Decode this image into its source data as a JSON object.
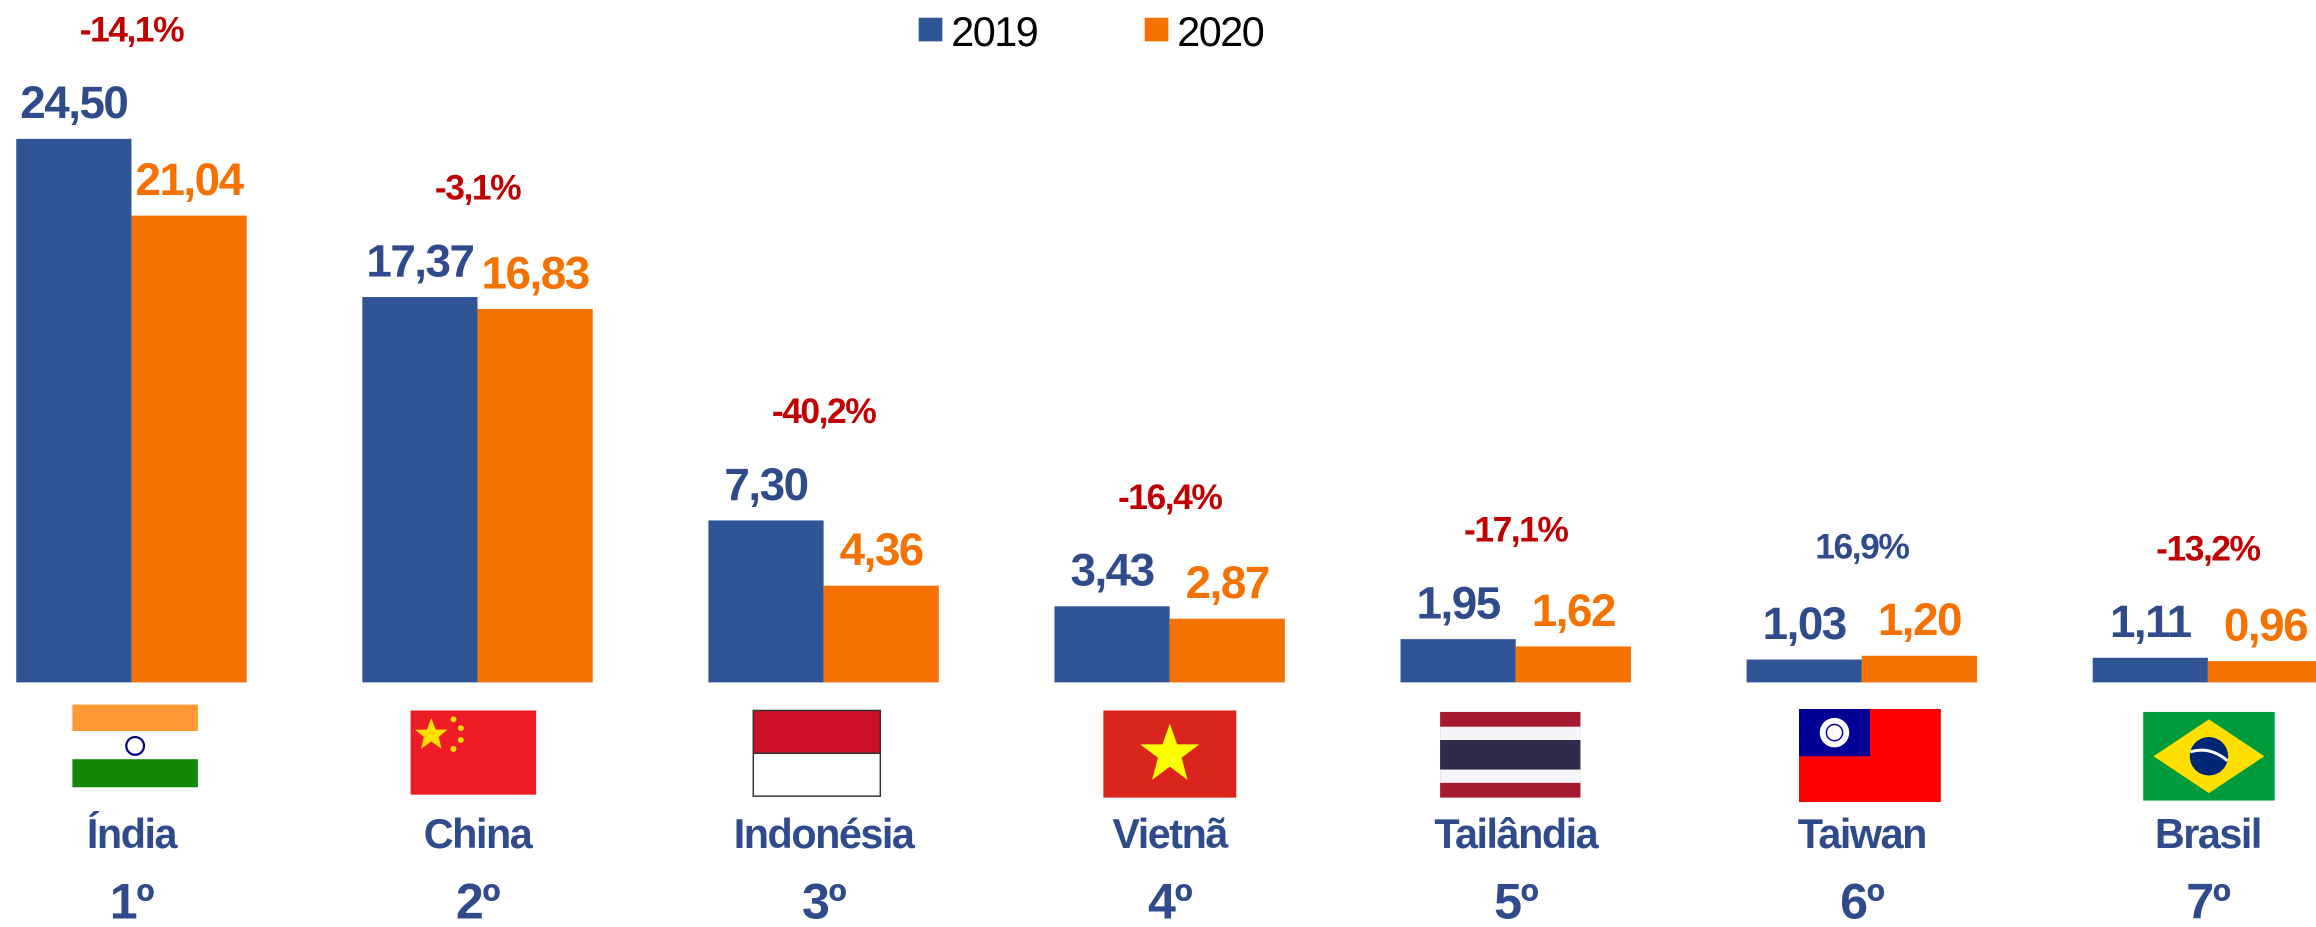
{
  "chart_data": {
    "type": "bar",
    "categories": [
      "Índia",
      "China",
      "Indonésia",
      "Vietnã",
      "Tailândia",
      "Taiwan",
      "Brasil"
    ],
    "ranks": [
      "1º",
      "2º",
      "3º",
      "4º",
      "5º",
      "6º",
      "7º"
    ],
    "series": [
      {
        "name": "2019",
        "color": "#2f5597",
        "values": [
          24.5,
          17.37,
          7.3,
          3.43,
          1.95,
          1.03,
          1.11
        ],
        "value_labels": [
          "24,50",
          "17,37",
          "7,30",
          "3,43",
          "1,95",
          "1,03",
          "1,11"
        ]
      },
      {
        "name": "2020",
        "color": "#f57200",
        "values": [
          21.04,
          16.83,
          4.36,
          2.87,
          1.62,
          1.2,
          0.96
        ],
        "value_labels": [
          "21,04",
          "16,83",
          "4,36",
          "2,87",
          "1,62",
          "1,20",
          "0,96"
        ]
      }
    ],
    "changes": [
      -14.1,
      -3.1,
      -40.2,
      -16.4,
      -17.1,
      16.9,
      -13.2
    ],
    "change_labels": [
      "-14,1%",
      "-3,1%",
      "-40,2%",
      "-16,4%",
      "-17,1%",
      "16,9%",
      "-13,2%"
    ],
    "negative_color": "#c00000",
    "positive_color": "#2f4b8c",
    "label_color": "#2f4b8c"
  }
}
